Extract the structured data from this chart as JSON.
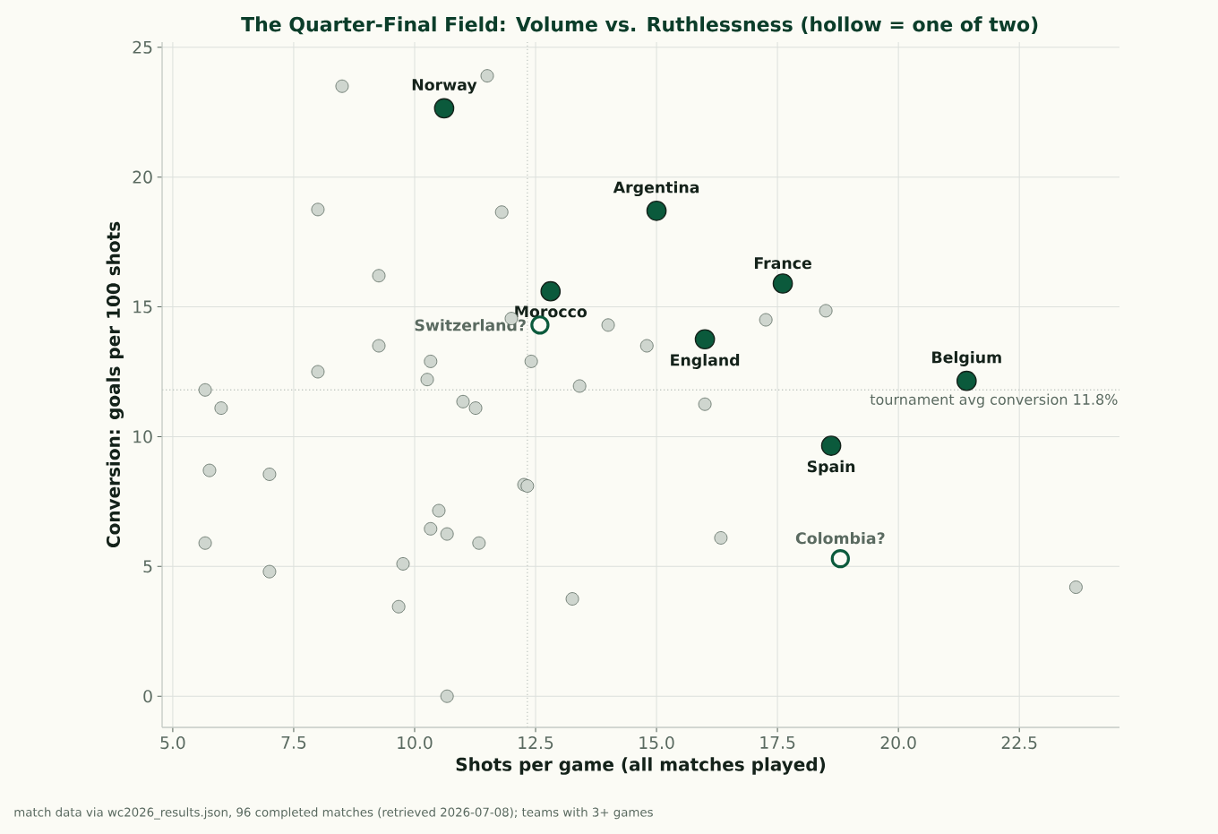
{
  "chart_data": {
    "type": "scatter",
    "title": "The Quarter-Final Field: Volume vs. Ruthlessness (hollow = one of two)",
    "xlabel": "Shots per game (all matches played)",
    "ylabel": "Conversion: goals per 100 shots",
    "xlim": [
      4.78,
      24.57
    ],
    "ylim": [
      -1.2,
      25.2
    ],
    "xticks": [
      {
        "value": 5,
        "label": "5.0"
      },
      {
        "value": 7.5,
        "label": "7.5"
      },
      {
        "value": 10,
        "label": "10.0"
      },
      {
        "value": 12.5,
        "label": "12.5"
      },
      {
        "value": 15,
        "label": "15.0"
      },
      {
        "value": 17.5,
        "label": "17.5"
      },
      {
        "value": 20,
        "label": "20.0"
      },
      {
        "value": 22.5,
        "label": "22.5"
      }
    ],
    "yticks": [
      0,
      5,
      10,
      15,
      20,
      25
    ],
    "grid": true,
    "marker": "circle",
    "series": [
      {
        "color": "#cfd6cf",
        "x": [
          8.5,
          11.5,
          8.0,
          11.8,
          9.26,
          12.0,
          14.0,
          14.8,
          17.26,
          18.5,
          9.26,
          10.33,
          12.41,
          8.0,
          10.26,
          13.41,
          5.67,
          6.0,
          11.0,
          11.26,
          16.0,
          5.76,
          7.0,
          12.26,
          12.33,
          10.5,
          10.33,
          10.67,
          11.33,
          5.67,
          16.33,
          9.76,
          7.0,
          9.67,
          13.26,
          23.67,
          10.67
        ],
        "values": [
          23.5,
          23.9,
          18.75,
          18.65,
          16.2,
          14.55,
          14.3,
          13.5,
          14.5,
          14.85,
          13.5,
          12.9,
          12.9,
          12.5,
          12.2,
          11.95,
          11.8,
          11.1,
          11.35,
          11.1,
          11.25,
          8.7,
          8.55,
          8.15,
          8.1,
          7.15,
          6.45,
          6.25,
          5.9,
          5.9,
          6.1,
          5.1,
          4.8,
          3.45,
          3.75,
          4.2,
          0
        ]
      },
      {
        "color": "#0b5a3c",
        "x": [
          10.61,
          15.0,
          12.81,
          17.61,
          16.0,
          21.41,
          18.61
        ],
        "values": [
          22.65,
          18.7,
          15.6,
          15.9,
          13.75,
          12.15,
          9.65
        ]
      },
      {
        "color": "#0b5a3c",
        "x": [
          12.59,
          18.8
        ],
        "values": [
          14.3,
          5.3
        ]
      }
    ],
    "ref_lines": [
      {
        "axis": "y",
        "value": 11.8,
        "label": "tournament avg conversion 11.8%"
      },
      {
        "axis": "x",
        "value": 12.33
      }
    ],
    "annotations": [
      {
        "text": "Norway",
        "x": 10.61,
        "y": 22.65
      },
      {
        "text": "Argentina",
        "x": 15.0,
        "y": 18.7
      },
      {
        "text": "Morocco",
        "x": 12.81,
        "y": 15.6
      },
      {
        "text": "France",
        "x": 17.61,
        "y": 15.9
      },
      {
        "text": "England",
        "x": 16.0,
        "y": 13.75
      },
      {
        "text": "Belgium",
        "x": 21.41,
        "y": 12.15
      },
      {
        "text": "Spain",
        "x": 18.61,
        "y": 9.65
      },
      {
        "text": "Switzerland?",
        "x": 12.59,
        "y": 14.3
      },
      {
        "text": "Colombia?",
        "x": 18.8,
        "y": 5.3
      },
      "match data via wc2026_results.json, 96 completed matches (retrieved 2026-07-08); teams with 3+ games"
    ]
  }
}
